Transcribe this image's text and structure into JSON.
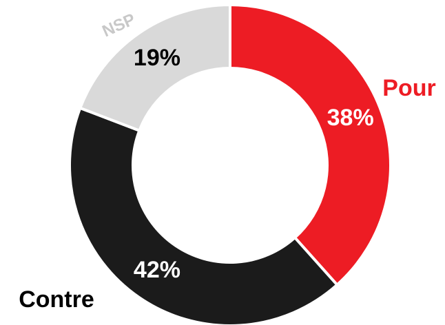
{
  "chart_data": {
    "type": "donut",
    "categories": [
      "Pour",
      "Contre",
      "NSP"
    ],
    "values": [
      38,
      42,
      19
    ],
    "value_labels": [
      "38%",
      "42%",
      "19%"
    ],
    "colors": [
      "#ed1c24",
      "#1b1b1b",
      "#d9d9d9"
    ]
  }
}
